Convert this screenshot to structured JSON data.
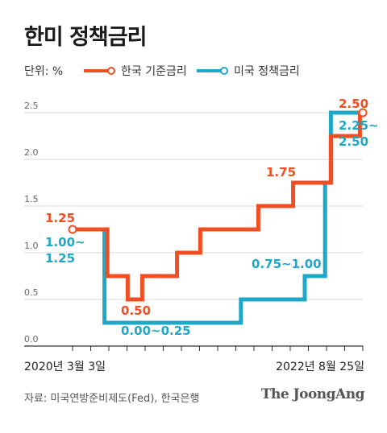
{
  "title": "한미 정책금리",
  "legend": {
    "unit_label": "단위: %",
    "items": [
      {
        "name": "한국 기준금리",
        "color": "#f04e23"
      },
      {
        "name": "미국 정책금리",
        "color": "#1ea7c6"
      }
    ]
  },
  "source": "자료: 미국연방준비제도(Fed), 한국은행",
  "brand": "The JoongAng",
  "chart_data": {
    "type": "line",
    "step": true,
    "title": "한미 정책금리",
    "x_labels": {
      "start": "2020년 3월 3일",
      "end": "2022년 8월 25일"
    },
    "ylim": [
      0,
      2.5
    ],
    "yticks": [
      "2.5",
      "2.0",
      "1.5",
      "1.0",
      "0.5",
      "0.0"
    ],
    "ytick_values": [
      2.5,
      2.0,
      1.5,
      1.0,
      0.5,
      0.0
    ],
    "grid": true,
    "series": [
      {
        "name": "한국 기준금리",
        "color": "#f04e23",
        "steps": [
          {
            "t": 0.0,
            "v": 1.25
          },
          {
            "t": 0.07,
            "v": 1.25
          },
          {
            "t": 0.12,
            "v": 0.75
          },
          {
            "t": 0.19,
            "v": 0.5
          },
          {
            "t": 0.24,
            "v": 0.75
          },
          {
            "t": 0.36,
            "v": 1.0
          },
          {
            "t": 0.44,
            "v": 1.25
          },
          {
            "t": 0.64,
            "v": 1.5
          },
          {
            "t": 0.76,
            "v": 1.75
          },
          {
            "t": 0.89,
            "v": 2.25
          },
          {
            "t": 0.99,
            "v": 2.5
          }
        ],
        "end_t": 1.0
      },
      {
        "name": "미국 정책금리",
        "color": "#1ea7c6",
        "steps": [
          {
            "t": 0.0,
            "v": 1.25
          },
          {
            "t": 0.07,
            "v": 1.25
          },
          {
            "t": 0.11,
            "v": 0.25
          },
          {
            "t": 0.58,
            "v": 0.5
          },
          {
            "t": 0.8,
            "v": 0.75
          },
          {
            "t": 0.87,
            "v": 1.75
          },
          {
            "t": 0.89,
            "v": 2.5
          }
        ],
        "end_t": 1.0
      }
    ],
    "annotations": [
      {
        "text": "1.25",
        "series": 0
      },
      {
        "text": "1.00~",
        "series": 1
      },
      {
        "text": "1.25",
        "series": 1
      },
      {
        "text": "0.50",
        "series": 0
      },
      {
        "text": "0.00~0.25",
        "series": 1
      },
      {
        "text": "0.75~1.00",
        "series": 1
      },
      {
        "text": "1.75",
        "series": 0
      },
      {
        "text": "2.50",
        "series": 0
      },
      {
        "text": "2.25~",
        "series": 1
      },
      {
        "text": "2.50",
        "series": 1
      }
    ]
  }
}
